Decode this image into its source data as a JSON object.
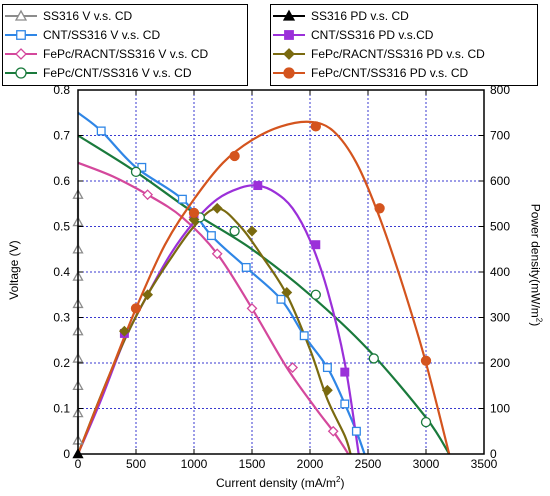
{
  "chart_data": {
    "type": "line",
    "xlabel": "Current density (mA/m",
    "xlabel_sup": "2",
    "xlabel_end": ")",
    "ylabel": "Voltage (V)",
    "y2label": "Power density(mW/m",
    "y2label_sup": "2",
    "y2label_end": ")",
    "xlim": [
      0,
      3500
    ],
    "ylim": [
      0,
      0.8
    ],
    "y2lim": [
      0,
      800
    ],
    "xticks": [
      "0",
      "500",
      "1000",
      "1500",
      "2000",
      "2500",
      "3000",
      "3500"
    ],
    "yticks": [
      "0",
      "0.1",
      "0.2",
      "0.3",
      "0.4",
      "0.5",
      "0.6",
      "0.7",
      "0.8"
    ],
    "y2ticks": [
      "0",
      "100",
      "200",
      "300",
      "400",
      "500",
      "600",
      "700",
      "800"
    ],
    "grid": true,
    "legend_left": [
      {
        "label": "SS316 V v.s. CD",
        "color": "#8c8c8c",
        "marker": "triangle-open"
      },
      {
        "label": "CNT/SS316 V v.s. CD",
        "color": "#2f86e6",
        "marker": "square-open"
      },
      {
        "label": "FePc/RACNT/SS316 V v.s. CD",
        "color": "#d4489c",
        "marker": "diamond-open"
      },
      {
        "label": "FePc/CNT/SS316 V v.s. CD",
        "color": "#1a7a3c",
        "marker": "circle-open"
      }
    ],
    "legend_right": [
      {
        "label": "SS316 PD v.s. CD",
        "color": "#000000",
        "marker": "triangle-filled"
      },
      {
        "label": "CNT/SS316 PD v.s.CD",
        "color": "#9b30d9",
        "marker": "square-filled"
      },
      {
        "label": "FePc/RACNT/SS316 PD v.s. CD",
        "color": "#7a6a10",
        "marker": "diamond-filled"
      },
      {
        "label": "FePc/CNT/SS316 PD v.s. CD",
        "color": "#d4541e",
        "marker": "circle-filled"
      }
    ],
    "series": [
      {
        "name": "SS316 V v.s. CD",
        "axis": "left",
        "color": "#8c8c8c",
        "marker": "triangle-open",
        "x": [
          0,
          0,
          0,
          0,
          0,
          0,
          0,
          0,
          0,
          0
        ],
        "y": [
          0.03,
          0.09,
          0.15,
          0.21,
          0.27,
          0.33,
          0.39,
          0.45,
          0.51,
          0.57
        ],
        "marker_x": [
          0,
          0,
          0,
          0,
          0,
          0,
          0,
          0,
          0,
          0
        ],
        "marker_y": [
          0.03,
          0.09,
          0.15,
          0.21,
          0.27,
          0.33,
          0.39,
          0.45,
          0.51,
          0.57
        ]
      },
      {
        "name": "CNT/SS316 V v.s. CD",
        "axis": "left",
        "color": "#2f86e6",
        "marker": "square-open",
        "x": [
          0,
          200,
          500,
          900,
          1150,
          1450,
          1750,
          1950,
          2150,
          2300,
          2400,
          2470
        ],
        "y": [
          0.75,
          0.71,
          0.63,
          0.56,
          0.48,
          0.41,
          0.34,
          0.26,
          0.19,
          0.11,
          0.05,
          0
        ],
        "marker_x": [
          200,
          550,
          900,
          1150,
          1450,
          1750,
          1950,
          2150,
          2300,
          2400
        ],
        "marker_y": [
          0.71,
          0.63,
          0.56,
          0.48,
          0.41,
          0.34,
          0.26,
          0.19,
          0.11,
          0.05
        ]
      },
      {
        "name": "FePc/RACNT/SS316 V v.s. CD",
        "axis": "left",
        "color": "#d4489c",
        "marker": "diamond-open",
        "x": [
          0,
          300,
          600,
          900,
          1200,
          1500,
          1800,
          2050,
          2200,
          2280,
          2330
        ],
        "y": [
          0.64,
          0.61,
          0.57,
          0.52,
          0.44,
          0.32,
          0.19,
          0.1,
          0.05,
          0.02,
          0
        ],
        "marker_x": [
          600,
          1000,
          1200,
          1500,
          1850,
          2200
        ],
        "marker_y": [
          0.57,
          0.52,
          0.44,
          0.32,
          0.19,
          0.05
        ]
      },
      {
        "name": "FePc/CNT/SS316 V v.s. CD",
        "axis": "left",
        "color": "#1a7a3c",
        "marker": "circle-open",
        "x": [
          0,
          500,
          1000,
          1500,
          2000,
          2500,
          3000,
          3200
        ],
        "y": [
          0.7,
          0.62,
          0.53,
          0.45,
          0.35,
          0.23,
          0.08,
          0
        ],
        "marker_x": [
          500,
          1050,
          1350,
          2050,
          2550,
          3000
        ],
        "marker_y": [
          0.62,
          0.52,
          0.49,
          0.35,
          0.21,
          0.07
        ]
      },
      {
        "name": "SS316 PD v.s. CD",
        "axis": "right",
        "color": "#000000",
        "marker": "triangle-filled",
        "x": [
          0
        ],
        "y": [
          0
        ],
        "marker_x": [
          0
        ],
        "marker_y": [
          0
        ]
      },
      {
        "name": "CNT/SS316 PD v.s.CD",
        "axis": "right",
        "color": "#9b30d9",
        "marker": "square-filled",
        "x": [
          0,
          200,
          400,
          600,
          800,
          1000,
          1200,
          1400,
          1550,
          1700,
          1850,
          2000,
          2150,
          2300,
          2420
        ],
        "y": [
          0,
          120,
          250,
          350,
          440,
          510,
          560,
          585,
          590,
          575,
          540,
          470,
          360,
          200,
          0
        ],
        "marker_x": [
          400,
          1000,
          1550,
          2050,
          2300
        ],
        "marker_y": [
          265,
          525,
          590,
          460,
          180
        ]
      },
      {
        "name": "FePc/RACNT/SS316 PD v.s. CD",
        "axis": "right",
        "color": "#7a6a10",
        "marker": "diamond-filled",
        "x": [
          0,
          200,
          400,
          600,
          800,
          1000,
          1200,
          1400,
          1600,
          1800,
          2000,
          2150,
          2300,
          2350
        ],
        "y": [
          0,
          130,
          250,
          350,
          430,
          500,
          540,
          500,
          430,
          350,
          230,
          120,
          40,
          0
        ],
        "marker_x": [
          400,
          600,
          1000,
          1200,
          1500,
          1800,
          2150
        ],
        "marker_y": [
          270,
          350,
          515,
          540,
          490,
          355,
          140
        ]
      },
      {
        "name": "FePc/CNT/SS316 PD v.s. CD",
        "axis": "right",
        "color": "#d4541e",
        "marker": "circle-filled",
        "x": [
          0,
          250,
          500,
          750,
          1000,
          1250,
          1500,
          1750,
          2000,
          2200,
          2400,
          2600,
          2800,
          3000,
          3200
        ],
        "y": [
          0,
          160,
          320,
          460,
          560,
          640,
          690,
          720,
          730,
          710,
          640,
          520,
          370,
          200,
          0
        ],
        "marker_x": [
          500,
          1000,
          1350,
          2050,
          2600,
          3000
        ],
        "marker_y": [
          320,
          530,
          655,
          720,
          540,
          205
        ]
      }
    ]
  }
}
